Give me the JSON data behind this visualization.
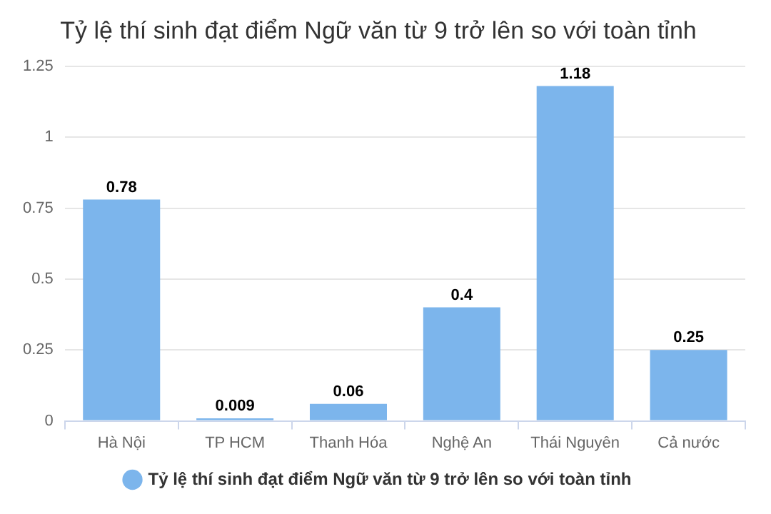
{
  "chart_data": {
    "type": "bar",
    "title": "Tỷ lệ thí sinh đạt điểm Ngữ văn từ 9 trở lên so với toàn tỉnh",
    "categories": [
      "Hà Nội",
      "TP HCM",
      "Thanh Hóa",
      "Nghệ An",
      "Thái Nguyên",
      "Cả nước"
    ],
    "series": [
      {
        "name": "Tỷ lệ thí sinh đạt điểm Ngữ văn từ 9 trở lên so với toàn tỉnh",
        "color": "#7cb5ec",
        "values": [
          0.78,
          0.009,
          0.06,
          0.4,
          1.18,
          0.25
        ]
      }
    ],
    "ylim": [
      0,
      1.25
    ],
    "yticks": [
      0,
      0.25,
      0.5,
      0.75,
      1,
      1.25
    ],
    "grid": "y",
    "legend": "bottom",
    "data_labels": true
  }
}
